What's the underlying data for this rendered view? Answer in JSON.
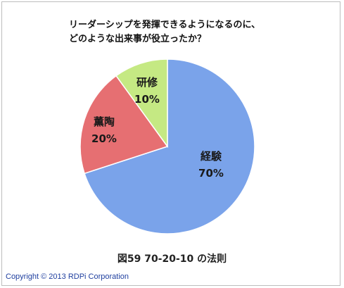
{
  "title_lines": [
    "リーダーシップを発揮できるようになるのに、",
    "どのような出来事が役立ったか？"
  ],
  "caption": "図59 70-20-10 の法則",
  "copyright": "Copyright © 2013  RDPi Corporation",
  "chart_data": {
    "type": "pie",
    "title": "リーダーシップを発揮できるようになるのに、どのような出来事が役立ったか？",
    "slices": [
      {
        "label": "経験",
        "value": 70,
        "value_label": "70%",
        "color": "#7aa3ea"
      },
      {
        "label": "薫陶",
        "value": 20,
        "value_label": "20%",
        "color": "#e66f72"
      },
      {
        "label": "研修",
        "value": 10,
        "value_label": "10%",
        "color": "#c5e983"
      }
    ],
    "legend": "none"
  }
}
